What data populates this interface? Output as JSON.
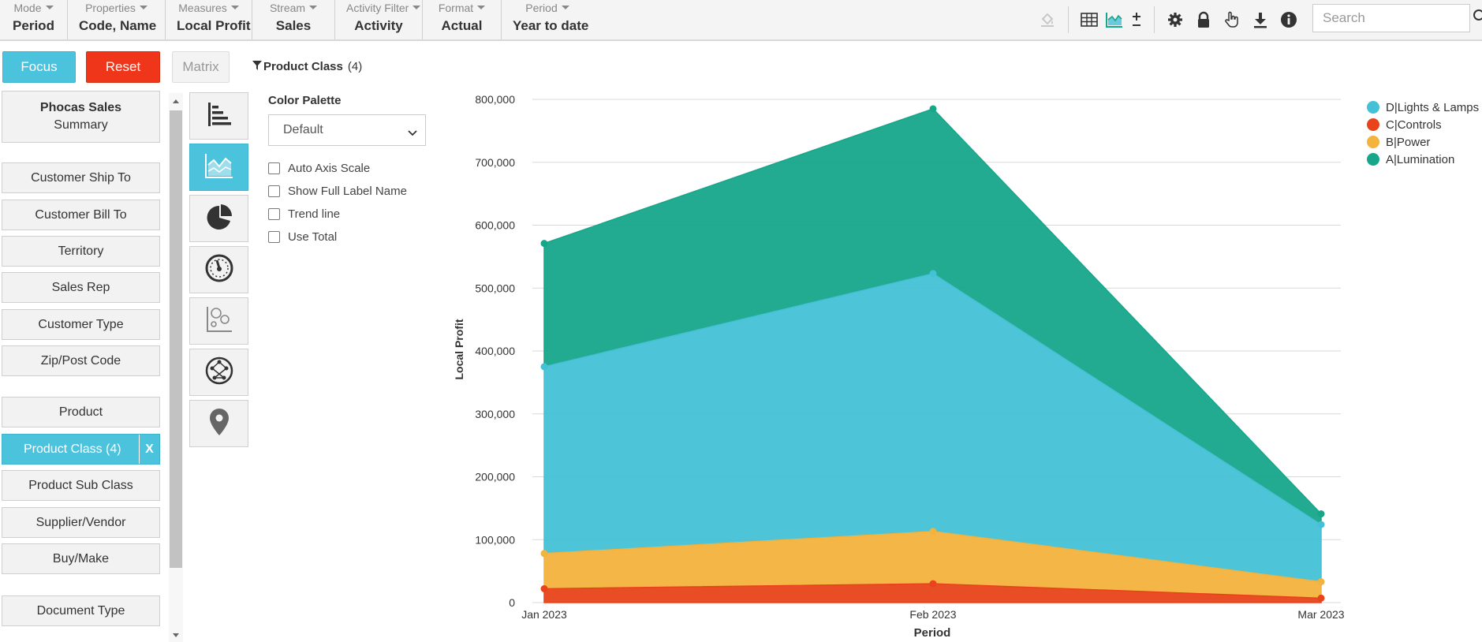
{
  "toolbar": {
    "items": [
      {
        "label": "Mode",
        "value": "Period"
      },
      {
        "label": "Properties",
        "value": "Code, Name"
      },
      {
        "label": "Measures",
        "value": "Local Profit"
      },
      {
        "label": "Stream",
        "value": "Sales"
      },
      {
        "label": "Activity Filter",
        "value": "Activity"
      },
      {
        "label": "Format",
        "value": "Actual"
      },
      {
        "label": "Period",
        "value": "Year to date"
      }
    ],
    "search_placeholder": "Search"
  },
  "actions": {
    "focus": "Focus",
    "reset": "Reset",
    "matrix": "Matrix"
  },
  "filter_tag": {
    "name": "Product Class",
    "count": "(4)"
  },
  "dimensions": {
    "summary_title": "Phocas Sales",
    "summary_sub": "Summary",
    "items": [
      "Customer Ship To",
      "Customer Bill To",
      "Territory",
      "Sales Rep",
      "Customer Type",
      "Zip/Post Code",
      "Product",
      "Product Class (4)",
      "Product Sub Class",
      "Supplier/Vendor",
      "Buy/Make",
      "Document Type"
    ],
    "active_close": "X"
  },
  "options": {
    "palette_title": "Color Palette",
    "palette_value": "Default",
    "checkboxes": [
      "Auto Axis Scale",
      "Show Full Label Name",
      "Trend line",
      "Use Total"
    ]
  },
  "colors": {
    "accent": "#4cc3dc",
    "reset": "#f0361a"
  },
  "chart_data": {
    "type": "area",
    "stacked": true,
    "categories": [
      "Jan 2023",
      "Feb 2023",
      "Mar 2023"
    ],
    "series": [
      {
        "name": "C|Controls",
        "color": "#e8431a",
        "values": [
          22000,
          30000,
          7000
        ]
      },
      {
        "name": "B|Power",
        "color": "#f3b33d",
        "values": [
          56000,
          83000,
          26000
        ]
      },
      {
        "name": "D|Lights & Lamps",
        "color": "#44c1d6",
        "values": [
          297000,
          410000,
          91000
        ]
      },
      {
        "name": "A|Lumination",
        "color": "#16a68a",
        "values": [
          196000,
          262000,
          17000
        ]
      }
    ],
    "legend_order": [
      "D|Lights & Lamps",
      "C|Controls",
      "B|Power",
      "A|Lumination"
    ],
    "xlabel": "Period",
    "ylabel": "Local Profit",
    "ylim": [
      0,
      800000
    ],
    "yticks": [
      "0",
      "100,000",
      "200,000",
      "300,000",
      "400,000",
      "500,000",
      "600,000",
      "700,000",
      "800,000"
    ],
    "grid": true,
    "legend_position": "top-right"
  }
}
